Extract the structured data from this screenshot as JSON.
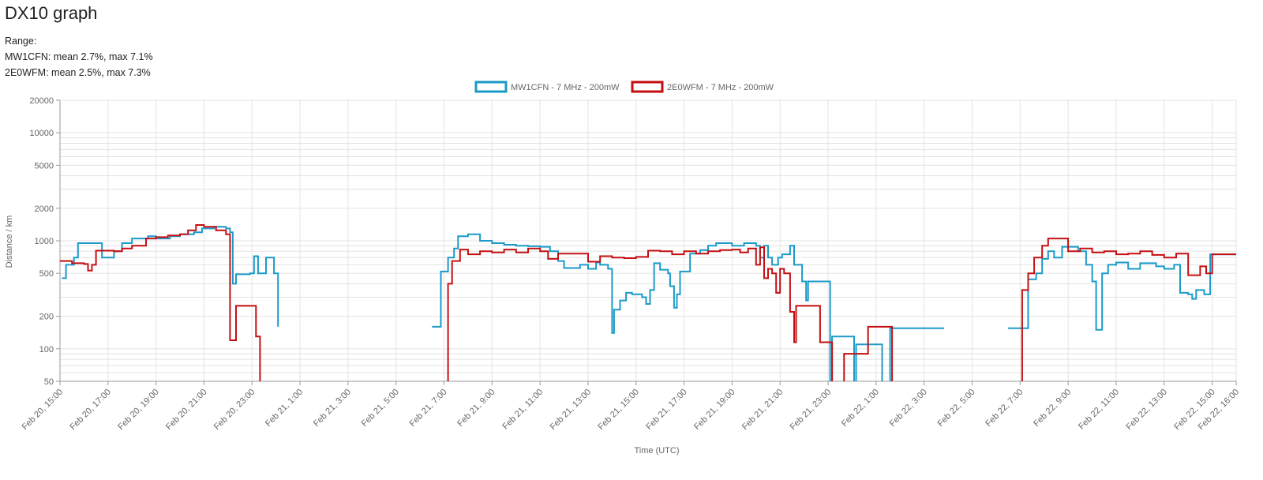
{
  "page": {
    "title": "DX10 graph",
    "range_label": "Range:",
    "stats": [
      "MW1CFN: mean 2.7%, max 7.1%",
      "2E0WFM: mean 2.5%, max 7.3%"
    ]
  },
  "colors": {
    "series1": "#1b9ac9",
    "series2": "#c40f12",
    "grid": "#e3e3e3",
    "axis": "#999999",
    "text": "#666666"
  },
  "chart_data": {
    "type": "line",
    "title": "",
    "xlabel": "Time (UTC)",
    "ylabel": "Distance / km",
    "y_scale": "log",
    "ylim": [
      50,
      20000
    ],
    "y_ticks": [
      50,
      100,
      200,
      500,
      1000,
      2000,
      5000,
      10000,
      20000
    ],
    "xlim": [
      "2024-02-20T15:00",
      "2024-02-22T16:00"
    ],
    "x_ticks": [
      {
        "t": "2024-02-20T15:00",
        "label": "Feb 20, 15:00"
      },
      {
        "t": "2024-02-20T17:00",
        "label": "Feb 20, 17:00"
      },
      {
        "t": "2024-02-20T19:00",
        "label": "Feb 20, 19:00"
      },
      {
        "t": "2024-02-20T21:00",
        "label": "Feb 20, 21:00"
      },
      {
        "t": "2024-02-20T23:00",
        "label": "Feb 20, 23:00"
      },
      {
        "t": "2024-02-21T01:00",
        "label": "Feb 21, 1:00"
      },
      {
        "t": "2024-02-21T03:00",
        "label": "Feb 21, 3:00"
      },
      {
        "t": "2024-02-21T05:00",
        "label": "Feb 21, 5:00"
      },
      {
        "t": "2024-02-21T07:00",
        "label": "Feb 21, 7:00"
      },
      {
        "t": "2024-02-21T09:00",
        "label": "Feb 21, 9:00"
      },
      {
        "t": "2024-02-21T11:00",
        "label": "Feb 21, 11:00"
      },
      {
        "t": "2024-02-21T13:00",
        "label": "Feb 21, 13:00"
      },
      {
        "t": "2024-02-21T15:00",
        "label": "Feb 21, 15:00"
      },
      {
        "t": "2024-02-21T17:00",
        "label": "Feb 21, 17:00"
      },
      {
        "t": "2024-02-21T19:00",
        "label": "Feb 21, 19:00"
      },
      {
        "t": "2024-02-21T21:00",
        "label": "Feb 21, 21:00"
      },
      {
        "t": "2024-02-21T23:00",
        "label": "Feb 21, 23:00"
      },
      {
        "t": "2024-02-22T01:00",
        "label": "Feb 22, 1:00"
      },
      {
        "t": "2024-02-22T03:00",
        "label": "Feb 22, 3:00"
      },
      {
        "t": "2024-02-22T05:00",
        "label": "Feb 22, 5:00"
      },
      {
        "t": "2024-02-22T07:00",
        "label": "Feb 22, 7:00"
      },
      {
        "t": "2024-02-22T09:00",
        "label": "Feb 22, 9:00"
      },
      {
        "t": "2024-02-22T11:00",
        "label": "Feb 22, 11:00"
      },
      {
        "t": "2024-02-22T13:00",
        "label": "Feb 22, 13:00"
      },
      {
        "t": "2024-02-22T15:00",
        "label": "Feb 22, 15:00"
      },
      {
        "t": "2024-02-22T16:00",
        "label": "Feb 22, 16:00"
      }
    ],
    "grid": true,
    "legend_position": "top-center",
    "series": [
      {
        "name": "MW1CFN - 7 MHz - 200mW",
        "points": [
          [
            "2024-02-20T15:05",
            450
          ],
          [
            "2024-02-20T15:15",
            600
          ],
          [
            "2024-02-20T15:35",
            700
          ],
          [
            "2024-02-20T15:45",
            950
          ],
          [
            "2024-02-20T16:45",
            700
          ],
          [
            "2024-02-20T17:15",
            800
          ],
          [
            "2024-02-20T17:35",
            950
          ],
          [
            "2024-02-20T18:00",
            1050
          ],
          [
            "2024-02-20T18:40",
            1100
          ],
          [
            "2024-02-20T19:00",
            1050
          ],
          [
            "2024-02-20T19:35",
            1100
          ],
          [
            "2024-02-20T20:00",
            1150
          ],
          [
            "2024-02-20T20:35",
            1200
          ],
          [
            "2024-02-20T20:55",
            1300
          ],
          [
            "2024-02-20T21:25",
            1350
          ],
          [
            "2024-02-20T21:55",
            1300
          ],
          [
            "2024-02-20T22:05",
            1200
          ],
          [
            "2024-02-20T22:12",
            400
          ],
          [
            "2024-02-20T22:20",
            490
          ],
          [
            "2024-02-20T22:55",
            500
          ],
          [
            "2024-02-20T23:05",
            720
          ],
          [
            "2024-02-20T23:15",
            500
          ],
          [
            "2024-02-20T23:35",
            700
          ],
          [
            "2024-02-20T23:55",
            500
          ],
          [
            "2024-02-21T00:05",
            160
          ],
          [
            "2024-02-21T00:30",
            null
          ],
          [
            "2024-02-21T06:30",
            160
          ],
          [
            "2024-02-21T06:52",
            520
          ],
          [
            "2024-02-21T07:10",
            700
          ],
          [
            "2024-02-21T07:25",
            850
          ],
          [
            "2024-02-21T07:35",
            1100
          ],
          [
            "2024-02-21T08:00",
            1150
          ],
          [
            "2024-02-21T08:30",
            1000
          ],
          [
            "2024-02-21T09:00",
            950
          ],
          [
            "2024-02-21T09:30",
            920
          ],
          [
            "2024-02-21T10:00",
            900
          ],
          [
            "2024-02-21T10:30",
            890
          ],
          [
            "2024-02-21T11:00",
            880
          ],
          [
            "2024-02-21T11:25",
            800
          ],
          [
            "2024-02-21T11:45",
            650
          ],
          [
            "2024-02-21T12:00",
            560
          ],
          [
            "2024-02-21T12:40",
            600
          ],
          [
            "2024-02-21T13:00",
            550
          ],
          [
            "2024-02-21T13:20",
            630
          ],
          [
            "2024-02-21T13:30",
            600
          ],
          [
            "2024-02-21T13:50",
            550
          ],
          [
            "2024-02-21T14:00",
            140
          ],
          [
            "2024-02-21T14:05",
            230
          ],
          [
            "2024-02-21T14:20",
            280
          ],
          [
            "2024-02-21T14:35",
            330
          ],
          [
            "2024-02-21T14:50",
            320
          ],
          [
            "2024-02-21T15:15",
            300
          ],
          [
            "2024-02-21T15:25",
            260
          ],
          [
            "2024-02-21T15:35",
            350
          ],
          [
            "2024-02-21T15:45",
            620
          ],
          [
            "2024-02-21T16:00",
            540
          ],
          [
            "2024-02-21T16:20",
            500
          ],
          [
            "2024-02-21T16:25",
            380
          ],
          [
            "2024-02-21T16:35",
            240
          ],
          [
            "2024-02-21T16:42",
            320
          ],
          [
            "2024-02-21T16:50",
            520
          ],
          [
            "2024-02-21T17:15",
            760
          ],
          [
            "2024-02-21T17:40",
            820
          ],
          [
            "2024-02-21T18:00",
            900
          ],
          [
            "2024-02-21T18:20",
            950
          ],
          [
            "2024-02-21T19:00",
            900
          ],
          [
            "2024-02-21T19:30",
            950
          ],
          [
            "2024-02-21T20:00",
            900
          ],
          [
            "2024-02-21T20:10",
            700
          ],
          [
            "2024-02-21T20:20",
            900
          ],
          [
            "2024-02-21T20:30",
            700
          ],
          [
            "2024-02-21T20:40",
            600
          ],
          [
            "2024-02-21T20:55",
            700
          ],
          [
            "2024-02-21T21:05",
            750
          ],
          [
            "2024-02-21T21:25",
            900
          ],
          [
            "2024-02-21T21:35",
            600
          ],
          [
            "2024-02-21T21:55",
            420
          ],
          [
            "2024-02-21T22:05",
            280
          ],
          [
            "2024-02-21T22:10",
            420
          ],
          [
            "2024-02-21T22:55",
            420
          ],
          [
            "2024-02-21T23:05",
            40
          ],
          [
            "2024-02-21T23:10",
            130
          ],
          [
            "2024-02-21T23:55",
            130
          ],
          [
            "2024-02-22T00:05",
            40
          ],
          [
            "2024-02-22T00:10",
            110
          ],
          [
            "2024-02-22T01:10",
            110
          ],
          [
            "2024-02-22T01:15",
            40
          ],
          [
            "2024-02-22T01:30",
            40
          ],
          [
            "2024-02-22T01:35",
            155
          ],
          [
            "2024-02-22T03:50",
            155
          ],
          [
            "2024-02-22T04:00",
            null
          ],
          [
            "2024-02-22T06:30",
            155
          ],
          [
            "2024-02-22T07:10",
            155
          ],
          [
            "2024-02-22T07:20",
            440
          ],
          [
            "2024-02-22T07:40",
            500
          ],
          [
            "2024-02-22T07:55",
            680
          ],
          [
            "2024-02-22T08:10",
            800
          ],
          [
            "2024-02-22T08:25",
            700
          ],
          [
            "2024-02-22T08:45",
            880
          ],
          [
            "2024-02-22T09:25",
            800
          ],
          [
            "2024-02-22T09:45",
            600
          ],
          [
            "2024-02-22T10:00",
            420
          ],
          [
            "2024-02-22T10:10",
            150
          ],
          [
            "2024-02-22T10:25",
            500
          ],
          [
            "2024-02-22T10:40",
            600
          ],
          [
            "2024-02-22T11:00",
            630
          ],
          [
            "2024-02-22T11:30",
            550
          ],
          [
            "2024-02-22T12:00",
            620
          ],
          [
            "2024-02-22T12:40",
            580
          ],
          [
            "2024-02-22T13:00",
            550
          ],
          [
            "2024-02-22T13:25",
            600
          ],
          [
            "2024-02-22T13:40",
            330
          ],
          [
            "2024-02-22T14:00",
            320
          ],
          [
            "2024-02-22T14:10",
            290
          ],
          [
            "2024-02-22T14:20",
            350
          ],
          [
            "2024-02-22T14:40",
            320
          ],
          [
            "2024-02-22T14:55",
            750
          ],
          [
            "2024-02-22T16:00",
            750
          ]
        ]
      },
      {
        "name": "2E0WFM - 7 MHz - 200mW",
        "points": [
          [
            "2024-02-20T15:00",
            650
          ],
          [
            "2024-02-20T15:30",
            620
          ],
          [
            "2024-02-20T16:00",
            610
          ],
          [
            "2024-02-20T16:10",
            530
          ],
          [
            "2024-02-20T16:20",
            600
          ],
          [
            "2024-02-20T16:30",
            810
          ],
          [
            "2024-02-20T17:15",
            800
          ],
          [
            "2024-02-20T17:35",
            850
          ],
          [
            "2024-02-20T18:00",
            900
          ],
          [
            "2024-02-20T18:35",
            1050
          ],
          [
            "2024-02-20T19:00",
            1080
          ],
          [
            "2024-02-20T19:30",
            1120
          ],
          [
            "2024-02-20T20:00",
            1150
          ],
          [
            "2024-02-20T20:20",
            1250
          ],
          [
            "2024-02-20T20:40",
            1400
          ],
          [
            "2024-02-20T21:00",
            1350
          ],
          [
            "2024-02-20T21:30",
            1250
          ],
          [
            "2024-02-20T21:55",
            1150
          ],
          [
            "2024-02-20T22:05",
            120
          ],
          [
            "2024-02-20T22:20",
            250
          ],
          [
            "2024-02-20T23:05",
            250
          ],
          [
            "2024-02-20T23:10",
            130
          ],
          [
            "2024-02-20T23:20",
            40
          ],
          [
            "2024-02-20T23:25",
            null
          ],
          [
            "2024-02-21T06:58",
            40
          ],
          [
            "2024-02-21T07:10",
            400
          ],
          [
            "2024-02-21T07:20",
            650
          ],
          [
            "2024-02-21T07:40",
            830
          ],
          [
            "2024-02-21T08:00",
            750
          ],
          [
            "2024-02-21T08:30",
            800
          ],
          [
            "2024-02-21T09:00",
            780
          ],
          [
            "2024-02-21T09:30",
            830
          ],
          [
            "2024-02-21T10:00",
            780
          ],
          [
            "2024-02-21T10:30",
            850
          ],
          [
            "2024-02-21T11:00",
            800
          ],
          [
            "2024-02-21T11:20",
            680
          ],
          [
            "2024-02-21T11:45",
            760
          ],
          [
            "2024-02-21T12:30",
            760
          ],
          [
            "2024-02-21T13:00",
            640
          ],
          [
            "2024-02-21T13:30",
            720
          ],
          [
            "2024-02-21T14:00",
            700
          ],
          [
            "2024-02-21T14:30",
            690
          ],
          [
            "2024-02-21T15:00",
            710
          ],
          [
            "2024-02-21T15:30",
            810
          ],
          [
            "2024-02-21T16:00",
            800
          ],
          [
            "2024-02-21T16:30",
            750
          ],
          [
            "2024-02-21T17:00",
            800
          ],
          [
            "2024-02-21T17:30",
            760
          ],
          [
            "2024-02-21T18:00",
            800
          ],
          [
            "2024-02-21T18:30",
            820
          ],
          [
            "2024-02-21T19:00",
            830
          ],
          [
            "2024-02-21T19:20",
            780
          ],
          [
            "2024-02-21T19:40",
            850
          ],
          [
            "2024-02-21T20:00",
            600
          ],
          [
            "2024-02-21T20:10",
            870
          ],
          [
            "2024-02-21T20:20",
            450
          ],
          [
            "2024-02-21T20:30",
            550
          ],
          [
            "2024-02-21T20:40",
            500
          ],
          [
            "2024-02-21T20:50",
            330
          ],
          [
            "2024-02-21T21:00",
            550
          ],
          [
            "2024-02-21T21:10",
            500
          ],
          [
            "2024-02-21T21:25",
            220
          ],
          [
            "2024-02-21T21:35",
            115
          ],
          [
            "2024-02-21T21:40",
            250
          ],
          [
            "2024-02-21T22:30",
            250
          ],
          [
            "2024-02-21T22:40",
            115
          ],
          [
            "2024-02-21T23:00",
            115
          ],
          [
            "2024-02-21T23:10",
            40
          ],
          [
            "2024-02-21T23:30",
            40
          ],
          [
            "2024-02-21T23:40",
            90
          ],
          [
            "2024-02-22T00:30",
            90
          ],
          [
            "2024-02-22T00:40",
            160
          ],
          [
            "2024-02-22T01:30",
            160
          ],
          [
            "2024-02-22T01:40",
            40
          ],
          [
            "2024-02-22T01:50",
            null
          ],
          [
            "2024-02-22T06:50",
            40
          ],
          [
            "2024-02-22T07:05",
            350
          ],
          [
            "2024-02-22T07:20",
            500
          ],
          [
            "2024-02-22T07:35",
            700
          ],
          [
            "2024-02-22T07:55",
            900
          ],
          [
            "2024-02-22T08:10",
            1050
          ],
          [
            "2024-02-22T08:50",
            1050
          ],
          [
            "2024-02-22T09:00",
            800
          ],
          [
            "2024-02-22T09:30",
            850
          ],
          [
            "2024-02-22T10:00",
            780
          ],
          [
            "2024-02-22T10:30",
            800
          ],
          [
            "2024-02-22T11:00",
            750
          ],
          [
            "2024-02-22T11:30",
            760
          ],
          [
            "2024-02-22T12:00",
            800
          ],
          [
            "2024-02-22T12:30",
            740
          ],
          [
            "2024-02-22T13:00",
            700
          ],
          [
            "2024-02-22T13:30",
            760
          ],
          [
            "2024-02-22T14:00",
            480
          ],
          [
            "2024-02-22T14:30",
            580
          ],
          [
            "2024-02-22T14:45",
            500
          ],
          [
            "2024-02-22T15:00",
            750
          ],
          [
            "2024-02-22T16:00",
            750
          ]
        ]
      }
    ]
  }
}
